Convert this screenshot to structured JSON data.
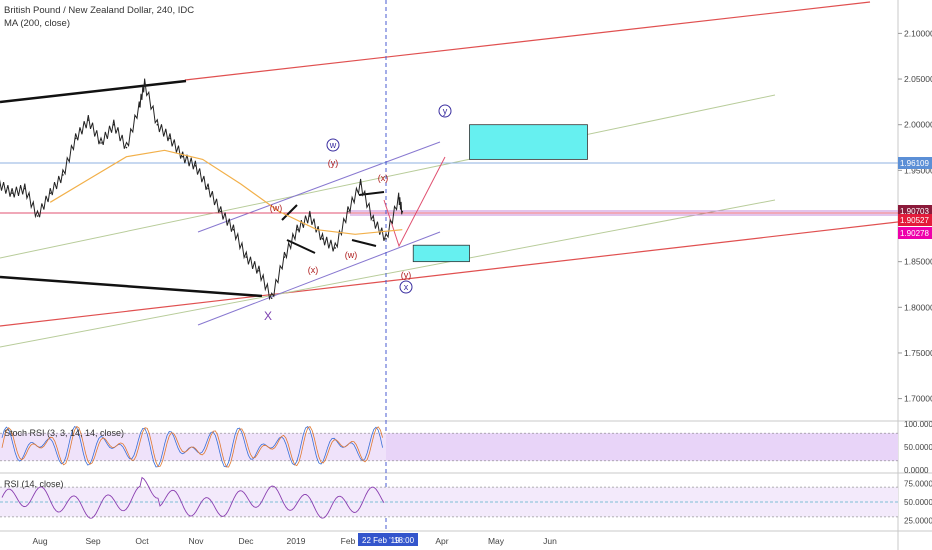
{
  "header": {
    "title": "British Pound / New Zealand Dollar, 240, IDC",
    "indicator": "MA (200, close)"
  },
  "panes": {
    "stoch_label": "Stoch RSI (3, 3, 14, 14, close)",
    "rsi_label": "RSI (14, close)"
  },
  "chart_data": {
    "type": "line",
    "symbol": "GBPNZD",
    "timeframe": "240",
    "x_ticks": [
      "Aug",
      "Sep",
      "Oct",
      "Nov",
      "Dec",
      "2019",
      "Feb",
      "Apr",
      "May",
      "Jun"
    ],
    "crosshair_date": "22 Feb '19",
    "crosshair_time": "18:00",
    "price_axis": {
      "ylim": [
        1.67,
        2.13
      ],
      "ticks": [
        "2.10000",
        "2.05000",
        "2.00000",
        "1.95000",
        "1.90000",
        "1.85000",
        "1.80000",
        "1.75000",
        "1.70000"
      ]
    },
    "price_labels": [
      {
        "value": 1.96109,
        "text": "1.96109",
        "color": "#5b8fd6"
      },
      {
        "value": 1.90703,
        "text": "1.90703",
        "color": "#8b1a3a"
      },
      {
        "value": 1.90527,
        "text": "1.90527",
        "color": "#e31b3a"
      },
      {
        "value": 1.90278,
        "text": "1.90278",
        "color": "#ee00aa"
      }
    ],
    "price_series": [
      {
        "date": "2018-07-08",
        "value": 1.945
      },
      {
        "date": "2018-07-15",
        "value": 1.935
      },
      {
        "date": "2018-07-22",
        "value": 1.925
      },
      {
        "date": "2018-07-29",
        "value": 1.93
      },
      {
        "date": "2018-08-05",
        "value": 1.9
      },
      {
        "date": "2018-08-12",
        "value": 1.925
      },
      {
        "date": "2018-08-19",
        "value": 1.945
      },
      {
        "date": "2018-08-26",
        "value": 1.985
      },
      {
        "date": "2018-09-02",
        "value": 2.005
      },
      {
        "date": "2018-09-09",
        "value": 1.98
      },
      {
        "date": "2018-09-16",
        "value": 2.0
      },
      {
        "date": "2018-09-23",
        "value": 1.975
      },
      {
        "date": "2018-09-30",
        "value": 2.02
      },
      {
        "date": "2018-10-03",
        "value": 2.045
      },
      {
        "date": "2018-10-10",
        "value": 2.0
      },
      {
        "date": "2018-10-17",
        "value": 1.985
      },
      {
        "date": "2018-10-24",
        "value": 1.965
      },
      {
        "date": "2018-10-31",
        "value": 1.955
      },
      {
        "date": "2018-11-07",
        "value": 1.93
      },
      {
        "date": "2018-11-14",
        "value": 1.905
      },
      {
        "date": "2018-11-21",
        "value": 1.885
      },
      {
        "date": "2018-11-28",
        "value": 1.855
      },
      {
        "date": "2018-12-05",
        "value": 1.84
      },
      {
        "date": "2018-12-12",
        "value": 1.81
      },
      {
        "date": "2018-12-19",
        "value": 1.855
      },
      {
        "date": "2018-12-26",
        "value": 1.885
      },
      {
        "date": "2019-01-02",
        "value": 1.9
      },
      {
        "date": "2019-01-09",
        "value": 1.875
      },
      {
        "date": "2019-01-16",
        "value": 1.865
      },
      {
        "date": "2019-01-23",
        "value": 1.905
      },
      {
        "date": "2019-01-30",
        "value": 1.935
      },
      {
        "date": "2019-02-06",
        "value": 1.895
      },
      {
        "date": "2019-02-13",
        "value": 1.875
      },
      {
        "date": "2019-02-20",
        "value": 1.92
      },
      {
        "date": "2019-02-22",
        "value": 1.905
      }
    ],
    "ma_series": [
      {
        "date": "2018-08-12",
        "value": 1.915
      },
      {
        "date": "2018-09-02",
        "value": 1.94
      },
      {
        "date": "2018-09-23",
        "value": 1.965
      },
      {
        "date": "2018-10-14",
        "value": 1.972
      },
      {
        "date": "2018-11-04",
        "value": 1.962
      },
      {
        "date": "2018-11-25",
        "value": 1.935
      },
      {
        "date": "2018-12-16",
        "value": 1.905
      },
      {
        "date": "2019-01-06",
        "value": 1.885
      },
      {
        "date": "2019-01-27",
        "value": 1.88
      },
      {
        "date": "2019-02-22",
        "value": 1.885
      }
    ],
    "stoch_rsi": {
      "ticks": [
        "100.0000",
        "50.0000",
        "0.0000"
      ],
      "levels": [
        80,
        20
      ],
      "ylim": [
        0,
        100
      ]
    },
    "rsi": {
      "ticks": [
        "75.0000",
        "50.0000",
        "25.0000"
      ],
      "levels": [
        70,
        30
      ],
      "ylim": [
        15,
        85
      ]
    },
    "wave_labels": [
      {
        "text": "w",
        "circled": true,
        "color": "#3b2fa0"
      },
      {
        "text": "(y)",
        "circled": false,
        "color": "#b02020"
      },
      {
        "text": "(w)",
        "circled": false,
        "color": "#b02020"
      },
      {
        "text": "(x)",
        "circled": false,
        "color": "#b02020"
      },
      {
        "text": "(w)",
        "circled": false,
        "color": "#b02020"
      },
      {
        "text": "(x)",
        "circled": false,
        "color": "#b02020"
      },
      {
        "text": "(y)",
        "circled": false,
        "color": "#b02020"
      },
      {
        "text": "x",
        "circled": true,
        "color": "#3b2fa0"
      },
      {
        "text": "y",
        "circled": true,
        "color": "#3b2fa0"
      },
      {
        "text": "X",
        "circled": false,
        "color": "#7b3fb0"
      }
    ],
    "target_zones": [
      {
        "from": "2019-03-31",
        "to": "2019-06-04",
        "low": 1.962,
        "high": 2.0,
        "color": "#66f0f0"
      },
      {
        "from": "2019-02-28",
        "to": "2019-03-31",
        "low": 1.85,
        "high": 1.868,
        "color": "#66f0f0"
      }
    ]
  }
}
